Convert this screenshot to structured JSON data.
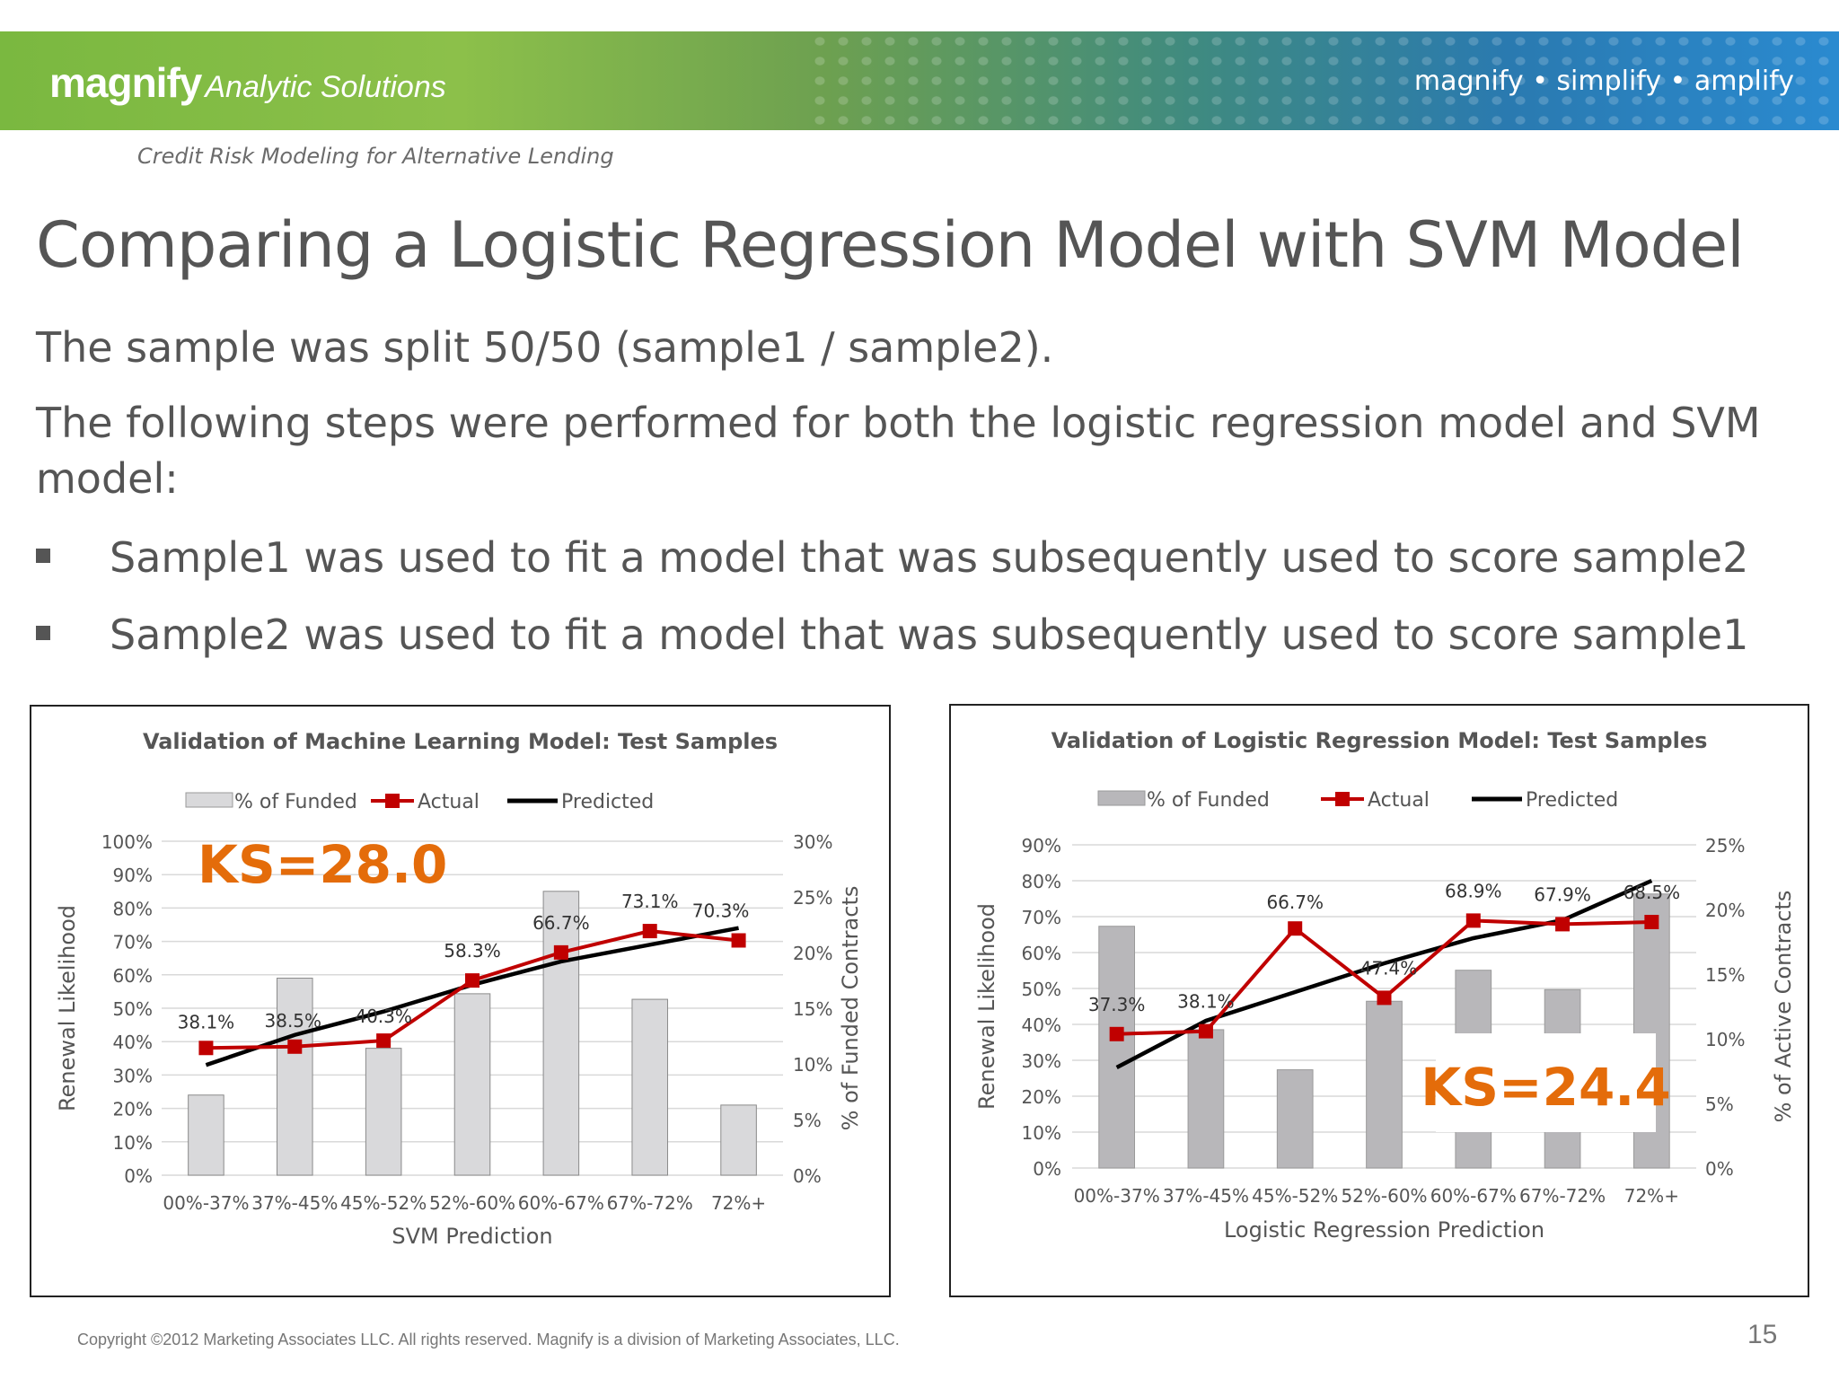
{
  "header": {
    "brand": "magnify",
    "brand_sub": "Analytic Solutions",
    "tagline": "magnify • simplify • amplify",
    "subtitle": "Credit Risk Modeling for Alternative Lending"
  },
  "slide": {
    "title": "Comparing a Logistic Regression Model with SVM Model",
    "para1": "The sample was split 50/50 (sample1  / sample2).",
    "para2": "The following steps were performed for both the logistic regression model and SVM model:",
    "bullets": [
      "Sample1 was used to fit a model that was subsequently used to score sample2",
      "Sample2 was used to fit a model that was subsequently used to score sample1"
    ]
  },
  "footer": {
    "copyright": "Copyright ©2012 Marketing Associates LLC. All rights reserved. Magnify is a division of Marketing Associates, LLC.",
    "page": "15"
  },
  "chart_data": [
    {
      "type": "bar",
      "title": "Validation of Machine Learning Model: Test Samples",
      "xlabel": "SVM Prediction",
      "ylabel": "Renewal Likelihood",
      "y2label": "% of Funded Contracts",
      "ylim": [
        0,
        100
      ],
      "y2lim": [
        0,
        30
      ],
      "yticks": [
        "0%",
        "10%",
        "20%",
        "30%",
        "40%",
        "50%",
        "60%",
        "70%",
        "80%",
        "90%",
        "100%"
      ],
      "y2ticks": [
        "0%",
        "5%",
        "10%",
        "15%",
        "20%",
        "25%",
        "30%"
      ],
      "categories": [
        "00%-37%",
        "37%-45%",
        "45%-52%",
        "52%-60%",
        "60%-67%",
        "67%-72%",
        "72%+"
      ],
      "legend": [
        "% of Funded",
        "Actual",
        "Predicted"
      ],
      "legend_position": "top",
      "annotation": "KS=28.0",
      "series": [
        {
          "name": "% of Funded",
          "axis": "secondary",
          "kind": "bar",
          "values": [
            7.2,
            17.7,
            11.4,
            16.3,
            25.5,
            15.8,
            6.3
          ]
        },
        {
          "name": "Actual",
          "axis": "primary",
          "kind": "line-marker",
          "values": [
            38.1,
            38.5,
            40.3,
            58.3,
            66.7,
            73.1,
            70.3
          ],
          "labels": [
            "38.1%",
            "38.5%",
            "40.3%",
            "58.3%",
            "66.7%",
            "73.1%",
            "70.3%"
          ]
        },
        {
          "name": "Predicted",
          "axis": "primary",
          "kind": "line",
          "values": [
            33,
            42,
            49,
            57,
            64,
            69,
            74
          ]
        }
      ]
    },
    {
      "type": "bar",
      "title": "Validation of Logistic Regression Model: Test Samples",
      "xlabel": "Logistic Regression Prediction",
      "ylabel": "Renewal Likelihood",
      "y2label": "% of Active Contracts",
      "ylim": [
        0,
        90
      ],
      "y2lim": [
        0,
        25
      ],
      "yticks": [
        "0%",
        "10%",
        "20%",
        "30%",
        "40%",
        "50%",
        "60%",
        "70%",
        "80%",
        "90%"
      ],
      "y2ticks": [
        "0%",
        "5%",
        "10%",
        "15%",
        "20%",
        "25%"
      ],
      "categories": [
        "00%-37%",
        "37%-45%",
        "45%-52%",
        "52%-60%",
        "60%-67%",
        "67%-72%",
        "72%+"
      ],
      "legend": [
        "% of Funded",
        "Actual",
        "Predicted"
      ],
      "legend_position": "top",
      "annotation": "KS=24.4",
      "series": [
        {
          "name": "% of Funded",
          "axis": "secondary",
          "kind": "bar",
          "values": [
            18.7,
            10.7,
            7.6,
            12.9,
            15.3,
            13.8,
            21.2
          ]
        },
        {
          "name": "Actual",
          "axis": "primary",
          "kind": "line-marker",
          "values": [
            37.3,
            38.1,
            66.7,
            47.4,
            68.9,
            67.9,
            68.5
          ],
          "labels": [
            "37.3%",
            "38.1%",
            "66.7%",
            "47.4%",
            "68.9%",
            "67.9%",
            "68.5%"
          ]
        },
        {
          "name": "Predicted",
          "axis": "primary",
          "kind": "line",
          "values": [
            28,
            41,
            49,
            57,
            64,
            69,
            80
          ]
        }
      ]
    }
  ]
}
